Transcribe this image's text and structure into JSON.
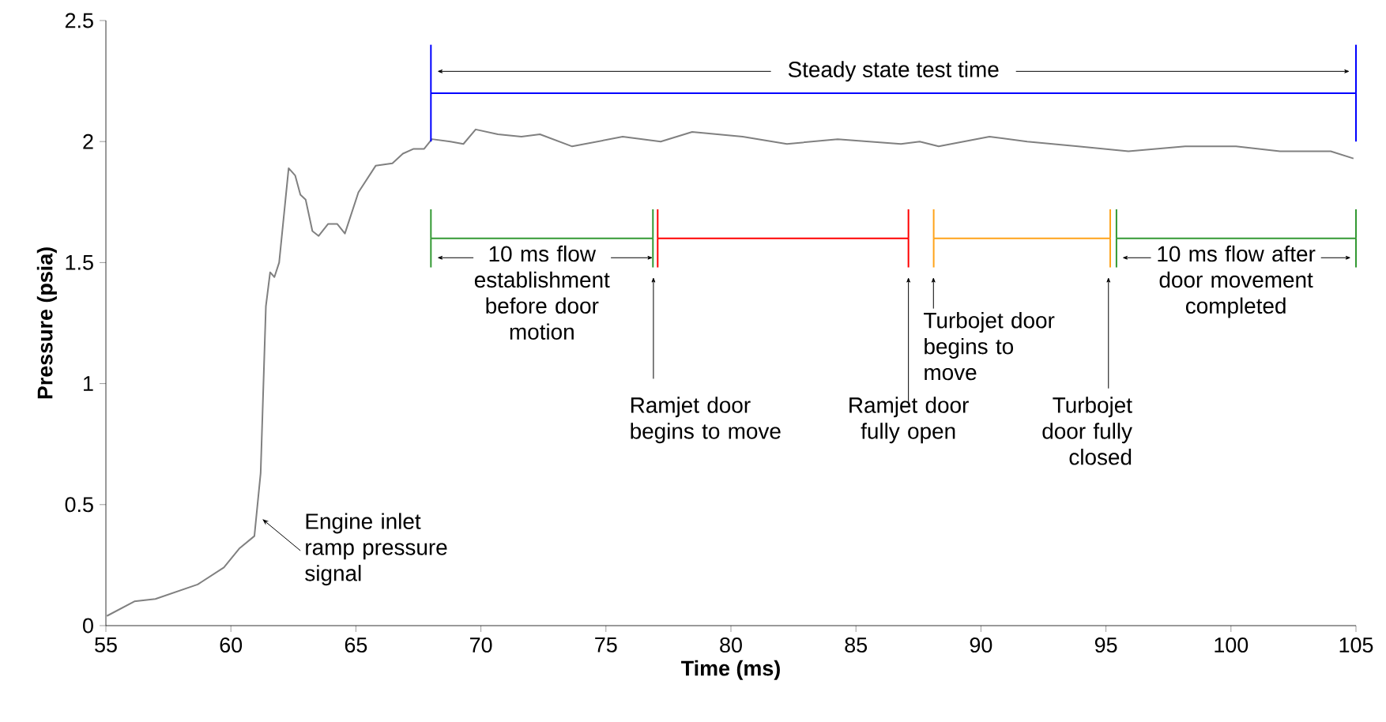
{
  "chart_data": {
    "type": "line",
    "xlabel": "Time (ms)",
    "ylabel": "Pressure (psia)",
    "xlim": [
      55,
      105
    ],
    "ylim": [
      0,
      2.5
    ],
    "xticks": [
      55,
      60,
      65,
      70,
      75,
      80,
      85,
      90,
      95,
      100,
      105
    ],
    "yticks": [
      0,
      0.5,
      1,
      1.5,
      2,
      2.5
    ],
    "grid": false,
    "marker": "none",
    "line_style": "solid",
    "series": [
      {
        "color": "#808080",
        "x": [
          55.04,
          56.14,
          56.98,
          58.67,
          59.72,
          60.35,
          60.94,
          61.19,
          61.4,
          61.57,
          61.74,
          61.93,
          62.31,
          62.57,
          62.78,
          62.99,
          63.26,
          63.51,
          63.89,
          64.25,
          64.56,
          65.1,
          65.79,
          66.46,
          66.88,
          67.31,
          67.73,
          68.04,
          68.78,
          69.3,
          69.79,
          70.68,
          71.62,
          72.36,
          73.65,
          75.67,
          77.19,
          78.45,
          80.47,
          82.24,
          84.27,
          86.8,
          87.55,
          88.31,
          90.34,
          91.85,
          93.88,
          95.9,
          98.17,
          100.2,
          101.96,
          103.99,
          104.9
        ],
        "values": [
          0.04,
          0.1,
          0.11,
          0.17,
          0.24,
          0.32,
          0.37,
          0.63,
          1.32,
          1.46,
          1.44,
          1.5,
          1.89,
          1.86,
          1.78,
          1.76,
          1.63,
          1.61,
          1.66,
          1.66,
          1.62,
          1.79,
          1.9,
          1.91,
          1.95,
          1.97,
          1.97,
          2.01,
          2.0,
          1.99,
          2.05,
          2.03,
          2.02,
          2.03,
          1.98,
          2.02,
          2.0,
          2.04,
          2.02,
          1.99,
          2.01,
          1.99,
          2.0,
          1.98,
          2.02,
          2.0,
          1.98,
          1.96,
          1.98,
          1.98,
          1.96,
          1.96,
          1.93
        ]
      },
      {
        "color": "#0000ff",
        "x": [
          68,
          105
        ],
        "values": [
          2.2,
          2.2
        ],
        "errors": [
          0.2,
          0.2
        ]
      },
      {
        "color": "#339933",
        "x": [
          68,
          76.88
        ],
        "values": [
          1.6,
          1.6
        ],
        "errors": [
          0.12,
          0.12
        ]
      },
      {
        "color": "#ff0000",
        "x": [
          77.07,
          87.1
        ],
        "values": [
          1.6,
          1.6
        ],
        "errors": [
          0.12,
          0.12
        ]
      },
      {
        "color": "#ffa31a",
        "x": [
          88.11,
          95.17
        ],
        "values": [
          1.6,
          1.6
        ],
        "errors": [
          0.12,
          0.12
        ]
      },
      {
        "color": "#339933",
        "x": [
          95.42,
          105
        ],
        "values": [
          1.6,
          1.6
        ],
        "errors": [
          0.12,
          0.12
        ]
      }
    ],
    "annotations": [
      "Steady state test time",
      {
        "text": "10 ms flow establishment before door motion",
        "x": 76.88,
        "y": 1.52
      },
      "10 ms flow after door movement completed",
      {
        "text": "Ramjet door begins to move",
        "x": 76.9,
        "y": 1.44
      },
      {
        "text": "Ramjet door fully open",
        "x": 87.1,
        "y": 1.44
      },
      {
        "text": "Turbojet door begins to move",
        "x": 88.1,
        "y": 1.44
      },
      {
        "text": "Turbojet door fully closed",
        "x": 95.1,
        "y": 1.44
      },
      {
        "text": "Engine inlet ramp pressure signal",
        "x": 61.26,
        "y": 0.44
      }
    ]
  }
}
